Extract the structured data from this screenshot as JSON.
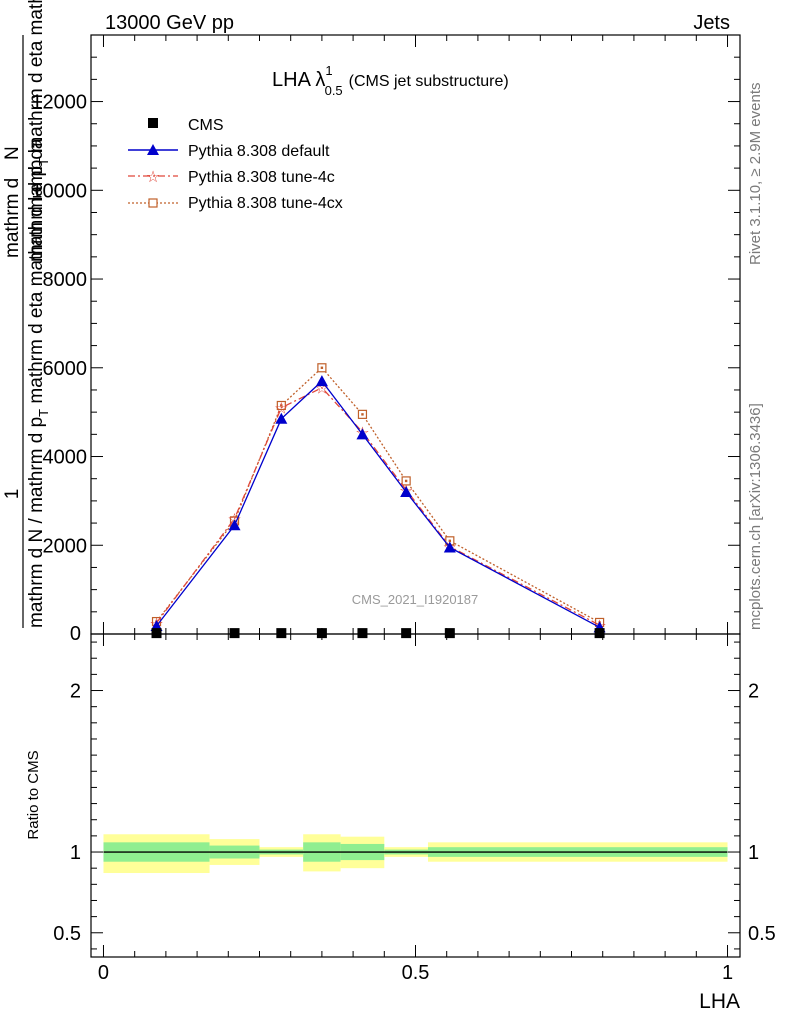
{
  "header": {
    "left": "13000 GeV pp",
    "right": "Jets"
  },
  "side_labels": {
    "rivet": "Rivet 3.1.10, ≥ 2.9M events",
    "mcplots": "mcplots.cern.ch [arXiv:1306.3436]"
  },
  "watermark": "CMS_2021_I1920187",
  "colors": {
    "cms": "#000000",
    "default": "#0000cc",
    "tune4c": "#e0473a",
    "tune4cx": "#c0602a",
    "band_inner": "#90ee90",
    "band_outer": "#ffff99"
  },
  "chart_data": [
    {
      "type": "line",
      "title": "LHA λ",
      "title_sup": "1",
      "title_sub": "0.5",
      "title_suffix": "(CMS jet substructure)",
      "ylabel_parts": {
        "one": "1",
        "denom": "mathrm d N / mathrm d p",
        "denom_sub": "T",
        "denom_rest": " mathrm d eta mathrm d lambda",
        "overlap_num": "mathrm d",
        "overlap_N": "N",
        "overlap_den": "mathrm d p",
        "overlap_den_sub": "T",
        "overlap_den_rest": " mathrm d eta mathrm d lambda"
      },
      "xlim": [
        -0.02,
        1.02
      ],
      "ylim": [
        0,
        13500
      ],
      "yticks": [
        2000,
        4000,
        6000,
        8000,
        10000,
        12000
      ],
      "yticklabels": [
        "2000",
        "4000",
        "6000",
        "8000",
        "10000",
        "12000"
      ],
      "ytick_zero": "0",
      "legend": {
        "cms": "CMS",
        "default": "Pythia 8.308 default",
        "tune4c": "Pythia 8.308 tune-4c",
        "tune4cx": "Pythia 8.308 tune-4cx"
      },
      "series": [
        {
          "name": "CMS",
          "x": [
            0.085,
            0.21,
            0.285,
            0.35,
            0.415,
            0.485,
            0.555,
            0.795
          ],
          "y": [
            20,
            20,
            20,
            20,
            20,
            20,
            20,
            20
          ]
        },
        {
          "name": "Pythia 8.308 default",
          "x": [
            0.085,
            0.21,
            0.285,
            0.35,
            0.415,
            0.485,
            0.555,
            0.795
          ],
          "y": [
            180,
            2450,
            4850,
            5700,
            4500,
            3200,
            1950,
            150
          ]
        },
        {
          "name": "Pythia 8.308 tune-4c",
          "x": [
            0.085,
            0.21,
            0.285,
            0.35,
            0.415,
            0.485,
            0.555,
            0.795
          ],
          "y": [
            250,
            2600,
            5100,
            5550,
            4550,
            3250,
            1970,
            200
          ]
        },
        {
          "name": "Pythia 8.308 tune-4cx",
          "x": [
            0.085,
            0.21,
            0.285,
            0.35,
            0.415,
            0.485,
            0.555,
            0.795
          ],
          "y": [
            280,
            2550,
            5150,
            6000,
            4950,
            3450,
            2100,
            260
          ]
        }
      ]
    },
    {
      "type": "area",
      "xlabel": "LHA",
      "ylabel": "Ratio to CMS",
      "xlim": [
        -0.02,
        1.02
      ],
      "ylim": [
        0.35,
        2.35
      ],
      "xticks": [
        0,
        0.5,
        1
      ],
      "xticklabels": [
        "0",
        "0.5",
        "1"
      ],
      "yticks": [
        0.5,
        1,
        2
      ],
      "yticklabels": [
        "0.5",
        "1",
        "2"
      ],
      "reference_line": 1,
      "bands": [
        {
          "x0": 0.0,
          "x1": 0.17,
          "inner": [
            0.94,
            1.06
          ],
          "outer": [
            0.87,
            1.11
          ]
        },
        {
          "x0": 0.17,
          "x1": 0.25,
          "inner": [
            0.96,
            1.04
          ],
          "outer": [
            0.92,
            1.08
          ]
        },
        {
          "x0": 0.25,
          "x1": 0.32,
          "inner": [
            0.985,
            1.015
          ],
          "outer": [
            0.97,
            1.03
          ]
        },
        {
          "x0": 0.32,
          "x1": 0.38,
          "inner": [
            0.94,
            1.06
          ],
          "outer": [
            0.88,
            1.11
          ]
        },
        {
          "x0": 0.38,
          "x1": 0.45,
          "inner": [
            0.95,
            1.05
          ],
          "outer": [
            0.9,
            1.095
          ]
        },
        {
          "x0": 0.45,
          "x1": 0.52,
          "inner": [
            0.985,
            1.015
          ],
          "outer": [
            0.97,
            1.03
          ]
        },
        {
          "x0": 0.52,
          "x1": 1.0,
          "inner": [
            0.97,
            1.03
          ],
          "outer": [
            0.94,
            1.06
          ]
        }
      ]
    }
  ]
}
